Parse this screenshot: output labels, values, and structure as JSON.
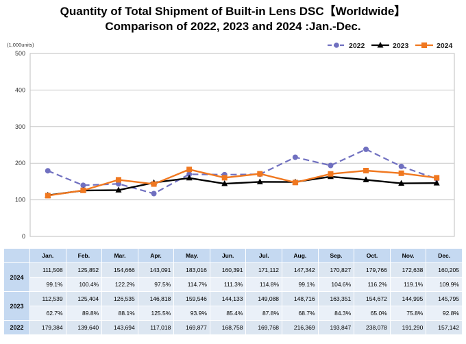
{
  "title_line1": "Quantity of Total Shipment of Built-in Lens DSC【Worldwide】",
  "title_line2": "Comparison of 2022, 2023 and 2024 :Jan.-Dec.",
  "chart_data": {
    "type": "line",
    "title": "Quantity of Total Shipment of Built-in Lens DSC【Worldwide】 Comparison of 2022, 2023 and 2024 :Jan.-Dec.",
    "unit_label": "(1,000units)",
    "categories": [
      "Jan.",
      "Feb.",
      "Mar.",
      "Apr.",
      "May.",
      "Jun.",
      "Jul.",
      "Aug.",
      "Sep.",
      "Oct.",
      "Nov.",
      "Dec."
    ],
    "ylim": [
      0,
      500
    ],
    "yticks": [
      0,
      100,
      200,
      300,
      400,
      500
    ],
    "grid": "horizontal",
    "legend_position": "top-right",
    "series": [
      {
        "name": "2022",
        "color": "#7070c0",
        "style": "dashed",
        "marker": "circle",
        "values": [
          179.384,
          139.64,
          143.694,
          117.018,
          169.877,
          168.758,
          169.768,
          216.369,
          193.847,
          238.078,
          191.29,
          157.142
        ]
      },
      {
        "name": "2023",
        "color": "#000000",
        "style": "solid",
        "marker": "triangle",
        "values": [
          112.539,
          125.404,
          126.535,
          146.818,
          159.546,
          144.133,
          149.088,
          148.716,
          163.351,
          154.672,
          144.995,
          145.795
        ]
      },
      {
        "name": "2024",
        "color": "#f07820",
        "style": "solid",
        "marker": "square",
        "values": [
          111.508,
          125.852,
          154.666,
          143.091,
          183.016,
          160.391,
          171.112,
          147.342,
          170.827,
          179.766,
          172.638,
          160.205
        ]
      }
    ]
  },
  "table": {
    "months": [
      "Jan.",
      "Feb.",
      "Mar.",
      "Apr.",
      "May.",
      "Jun.",
      "Jul.",
      "Aug.",
      "Sep.",
      "Oct.",
      "Nov.",
      "Dec."
    ],
    "rows": [
      {
        "year": "2024",
        "values": [
          "111,508",
          "125,852",
          "154,666",
          "143,091",
          "183,016",
          "160,391",
          "171,112",
          "147,342",
          "170,827",
          "179,766",
          "172,638",
          "160,205"
        ],
        "percents": [
          "99.1%",
          "100.4%",
          "122.2%",
          "97.5%",
          "114.7%",
          "111.3%",
          "114.8%",
          "99.1%",
          "104.6%",
          "116.2%",
          "119.1%",
          "109.9%"
        ]
      },
      {
        "year": "2023",
        "values": [
          "112,539",
          "125,404",
          "126,535",
          "146,818",
          "159,546",
          "144,133",
          "149,088",
          "148,716",
          "163,351",
          "154,672",
          "144,995",
          "145,795"
        ],
        "percents": [
          "62.7%",
          "89.8%",
          "88.1%",
          "125.5%",
          "93.9%",
          "85.4%",
          "87.8%",
          "68.7%",
          "84.3%",
          "65.0%",
          "75.8%",
          "92.8%"
        ]
      },
      {
        "year": "2022",
        "values": [
          "179,384",
          "139,640",
          "143,694",
          "117,018",
          "169,877",
          "168,758",
          "169,768",
          "216,369",
          "193,847",
          "238,078",
          "191,290",
          "157,142"
        ]
      }
    ]
  }
}
